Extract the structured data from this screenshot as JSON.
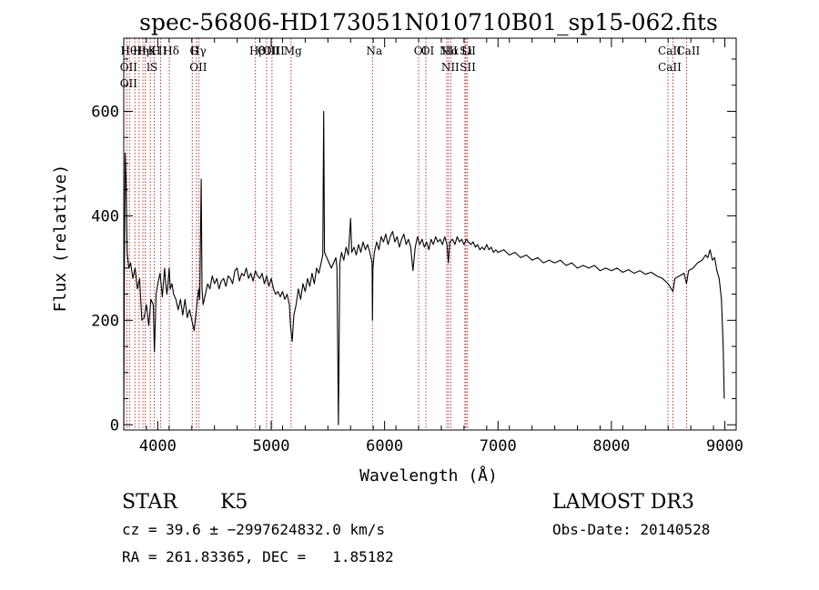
{
  "chart_data": {
    "type": "line",
    "title": "spec-56806-HD173051N010710B01_sp15-062.fits",
    "xlabel": "Wavelength (Å)",
    "ylabel": "Flux (relative)",
    "xlim": [
      3700,
      9100
    ],
    "ylim": [
      -10,
      740
    ],
    "xticks": [
      4000,
      5000,
      6000,
      7000,
      8000,
      9000
    ],
    "yticks": [
      0,
      200,
      400,
      600
    ],
    "grid": false,
    "line_color": "#000000",
    "marker_color": "#b22222",
    "series": [
      {
        "points": [
          [
            3700,
            0
          ],
          [
            3705,
            270
          ],
          [
            3712,
            520
          ],
          [
            3720,
            470
          ],
          [
            3730,
            330
          ],
          [
            3745,
            300
          ],
          [
            3760,
            310
          ],
          [
            3780,
            280
          ],
          [
            3800,
            300
          ],
          [
            3820,
            260
          ],
          [
            3840,
            280
          ],
          [
            3860,
            200
          ],
          [
            3880,
            205
          ],
          [
            3900,
            230
          ],
          [
            3920,
            190
          ],
          [
            3940,
            240
          ],
          [
            3960,
            230
          ],
          [
            3970,
            140
          ],
          [
            3985,
            250
          ],
          [
            4000,
            270
          ],
          [
            4020,
            290
          ],
          [
            4040,
            245
          ],
          [
            4060,
            300
          ],
          [
            4070,
            270
          ],
          [
            4080,
            250
          ],
          [
            4090,
            270
          ],
          [
            4100,
            300
          ],
          [
            4110,
            260
          ],
          [
            4125,
            270
          ],
          [
            4140,
            250
          ],
          [
            4160,
            240
          ],
          [
            4180,
            220
          ],
          [
            4200,
            240
          ],
          [
            4220,
            210
          ],
          [
            4240,
            240
          ],
          [
            4260,
            205
          ],
          [
            4280,
            220
          ],
          [
            4300,
            200
          ],
          [
            4320,
            180
          ],
          [
            4340,
            220
          ],
          [
            4360,
            260
          ],
          [
            4370,
            240
          ],
          [
            4383,
            470
          ],
          [
            4390,
            260
          ],
          [
            4400,
            230
          ],
          [
            4420,
            250
          ],
          [
            4440,
            270
          ],
          [
            4460,
            260
          ],
          [
            4480,
            285
          ],
          [
            4500,
            270
          ],
          [
            4520,
            280
          ],
          [
            4540,
            260
          ],
          [
            4560,
            275
          ],
          [
            4580,
            280
          ],
          [
            4600,
            265
          ],
          [
            4620,
            285
          ],
          [
            4640,
            280
          ],
          [
            4660,
            270
          ],
          [
            4680,
            295
          ],
          [
            4700,
            300
          ],
          [
            4720,
            275
          ],
          [
            4740,
            290
          ],
          [
            4760,
            285
          ],
          [
            4780,
            300
          ],
          [
            4800,
            280
          ],
          [
            4820,
            290
          ],
          [
            4840,
            275
          ],
          [
            4860,
            295
          ],
          [
            4880,
            285
          ],
          [
            4900,
            280
          ],
          [
            4920,
            290
          ],
          [
            4940,
            270
          ],
          [
            4960,
            285
          ],
          [
            4980,
            265
          ],
          [
            5000,
            280
          ],
          [
            5020,
            260
          ],
          [
            5040,
            250
          ],
          [
            5060,
            255
          ],
          [
            5080,
            245
          ],
          [
            5100,
            255
          ],
          [
            5120,
            240
          ],
          [
            5140,
            250
          ],
          [
            5160,
            230
          ],
          [
            5170,
            190
          ],
          [
            5185,
            160
          ],
          [
            5200,
            210
          ],
          [
            5220,
            230
          ],
          [
            5240,
            260
          ],
          [
            5260,
            240
          ],
          [
            5280,
            270
          ],
          [
            5300,
            255
          ],
          [
            5320,
            280
          ],
          [
            5340,
            265
          ],
          [
            5360,
            290
          ],
          [
            5380,
            270
          ],
          [
            5400,
            300
          ],
          [
            5420,
            290
          ],
          [
            5440,
            310
          ],
          [
            5455,
            325
          ],
          [
            5463,
            600
          ],
          [
            5470,
            330
          ],
          [
            5490,
            320
          ],
          [
            5510,
            310
          ],
          [
            5530,
            300
          ],
          [
            5550,
            310
          ],
          [
            5570,
            320
          ],
          [
            5580,
            300
          ],
          [
            5593,
            0
          ],
          [
            5605,
            310
          ],
          [
            5620,
            330
          ],
          [
            5640,
            315
          ],
          [
            5660,
            340
          ],
          [
            5680,
            325
          ],
          [
            5700,
            395
          ],
          [
            5710,
            330
          ],
          [
            5730,
            340
          ],
          [
            5750,
            325
          ],
          [
            5770,
            345
          ],
          [
            5790,
            330
          ],
          [
            5810,
            350
          ],
          [
            5830,
            335
          ],
          [
            5850,
            345
          ],
          [
            5870,
            330
          ],
          [
            5890,
            310
          ],
          [
            5893,
            200
          ],
          [
            5897,
            300
          ],
          [
            5910,
            330
          ],
          [
            5930,
            350
          ],
          [
            5950,
            335
          ],
          [
            5970,
            360
          ],
          [
            5990,
            350
          ],
          [
            6010,
            365
          ],
          [
            6030,
            345
          ],
          [
            6050,
            360
          ],
          [
            6070,
            370
          ],
          [
            6090,
            350
          ],
          [
            6110,
            360
          ],
          [
            6130,
            340
          ],
          [
            6150,
            355
          ],
          [
            6170,
            365
          ],
          [
            6190,
            345
          ],
          [
            6210,
            355
          ],
          [
            6230,
            340
          ],
          [
            6250,
            295
          ],
          [
            6270,
            340
          ],
          [
            6290,
            360
          ],
          [
            6310,
            345
          ],
          [
            6330,
            355
          ],
          [
            6350,
            340
          ],
          [
            6370,
            350
          ],
          [
            6390,
            335
          ],
          [
            6410,
            355
          ],
          [
            6430,
            345
          ],
          [
            6450,
            360
          ],
          [
            6470,
            350
          ],
          [
            6490,
            355
          ],
          [
            6510,
            345
          ],
          [
            6530,
            360
          ],
          [
            6550,
            345
          ],
          [
            6562,
            310
          ],
          [
            6575,
            350
          ],
          [
            6600,
            355
          ],
          [
            6620,
            345
          ],
          [
            6640,
            360
          ],
          [
            6660,
            350
          ],
          [
            6680,
            355
          ],
          [
            6700,
            345
          ],
          [
            6720,
            355
          ],
          [
            6740,
            350
          ],
          [
            6760,
            345
          ],
          [
            6780,
            350
          ],
          [
            6800,
            340
          ],
          [
            6820,
            345
          ],
          [
            6840,
            335
          ],
          [
            6860,
            340
          ],
          [
            6880,
            335
          ],
          [
            6900,
            345
          ],
          [
            6920,
            335
          ],
          [
            6940,
            340
          ],
          [
            6960,
            330
          ],
          [
            6980,
            335
          ],
          [
            7000,
            330
          ],
          [
            7050,
            335
          ],
          [
            7100,
            325
          ],
          [
            7150,
            330
          ],
          [
            7200,
            320
          ],
          [
            7250,
            325
          ],
          [
            7300,
            315
          ],
          [
            7350,
            320
          ],
          [
            7400,
            310
          ],
          [
            7450,
            315
          ],
          [
            7500,
            310
          ],
          [
            7550,
            315
          ],
          [
            7600,
            305
          ],
          [
            7650,
            310
          ],
          [
            7700,
            300
          ],
          [
            7750,
            305
          ],
          [
            7800,
            300
          ],
          [
            7850,
            305
          ],
          [
            7900,
            295
          ],
          [
            7950,
            300
          ],
          [
            8000,
            295
          ],
          [
            8050,
            300
          ],
          [
            8100,
            292
          ],
          [
            8150,
            297
          ],
          [
            8200,
            290
          ],
          [
            8250,
            295
          ],
          [
            8300,
            288
          ],
          [
            8350,
            292
          ],
          [
            8400,
            285
          ],
          [
            8450,
            280
          ],
          [
            8500,
            270
          ],
          [
            8542,
            255
          ],
          [
            8560,
            280
          ],
          [
            8600,
            285
          ],
          [
            8640,
            290
          ],
          [
            8662,
            270
          ],
          [
            8680,
            295
          ],
          [
            8720,
            300
          ],
          [
            8760,
            310
          ],
          [
            8800,
            315
          ],
          [
            8830,
            325
          ],
          [
            8850,
            320
          ],
          [
            8870,
            335
          ],
          [
            8890,
            315
          ],
          [
            8910,
            320
          ],
          [
            8930,
            295
          ],
          [
            8950,
            280
          ],
          [
            8970,
            240
          ],
          [
            8985,
            150
          ],
          [
            8995,
            50
          ]
        ]
      }
    ],
    "lines": [
      {
        "wavelength": 3727,
        "labels": [
          "Hθ",
          "OII",
          "OII"
        ]
      },
      {
        "wavelength": 3750,
        "labels": []
      },
      {
        "wavelength": 3798,
        "labels": []
      },
      {
        "wavelength": 3835,
        "labels": [
          "Hη"
        ]
      },
      {
        "wavelength": 3869,
        "labels": [
          "He"
        ]
      },
      {
        "wavelength": 3889,
        "labels": []
      },
      {
        "wavelength": 3934,
        "labels": [
          "K",
          "lS"
        ]
      },
      {
        "wavelength": 3968,
        "labels": [
          "H"
        ]
      },
      {
        "wavelength": 4026,
        "labels": [
          "II"
        ]
      },
      {
        "wavelength": 4102,
        "labels": [
          "Hδ"
        ]
      },
      {
        "wavelength": 4304,
        "labels": [
          "G"
        ]
      },
      {
        "wavelength": 4341,
        "labels": [
          "Hγ",
          "OII"
        ]
      },
      {
        "wavelength": 4363,
        "labels": []
      },
      {
        "wavelength": 4861,
        "labels": [
          "Hβ"
        ]
      },
      {
        "wavelength": 4959,
        "labels": [
          "OIII"
        ]
      },
      {
        "wavelength": 5007,
        "labels": [
          "OIII"
        ]
      },
      {
        "wavelength": 5175,
        "labels": [
          "Mg"
        ]
      },
      {
        "wavelength": 5893,
        "labels": [
          "Na"
        ]
      },
      {
        "wavelength": 6300,
        "labels": [
          "OI"
        ]
      },
      {
        "wavelength": 6364,
        "labels": [
          "OI"
        ]
      },
      {
        "wavelength": 6548,
        "labels": [
          "NII"
        ]
      },
      {
        "wavelength": 6563,
        "labels": [
          "Hα",
          "NII"
        ]
      },
      {
        "wavelength": 6583,
        "labels": []
      },
      {
        "wavelength": 6708,
        "labels": [
          "Li"
        ]
      },
      {
        "wavelength": 6717,
        "labels": [
          "SII",
          "SII"
        ]
      },
      {
        "wavelength": 6731,
        "labels": []
      },
      {
        "wavelength": 8498,
        "labels": [
          "CaII",
          "CaII"
        ]
      },
      {
        "wavelength": 8542,
        "labels": []
      },
      {
        "wavelength": 8662,
        "labels": [
          "CaII"
        ]
      }
    ]
  },
  "info": {
    "object_class": "STAR",
    "subclass": "K5",
    "survey": "LAMOST DR3",
    "cz_line": "cz = 39.6 ± −2997624832.0 km/s",
    "obs_date": "Obs-Date: 20140528",
    "radec_line": "RA = 261.83365, DEC =   1.85182"
  }
}
